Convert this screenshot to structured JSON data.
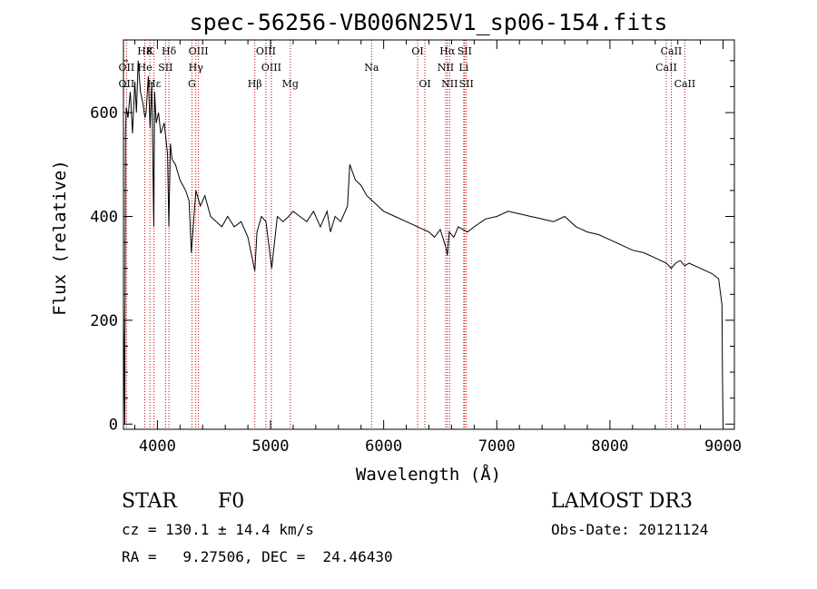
{
  "chart_data": {
    "type": "line",
    "title": "spec-56256-VB006N25V1_sp06-154.fits",
    "xlabel": "Wavelength (Å)",
    "ylabel": "Flux (relative)",
    "xlim": [
      3700,
      9100
    ],
    "ylim": [
      -10,
      740
    ],
    "xticks": [
      4000,
      5000,
      6000,
      7000,
      8000,
      9000
    ],
    "yticks": [
      0,
      200,
      400,
      600
    ],
    "grid": false,
    "series": [
      {
        "name": "flux",
        "x": [
          3700,
          3712,
          3718,
          3725,
          3740,
          3760,
          3780,
          3800,
          3815,
          3830,
          3850,
          3870,
          3890,
          3900,
          3920,
          3935,
          3950,
          3968,
          3975,
          3990,
          4010,
          4030,
          4060,
          4090,
          4101,
          4115,
          4130,
          4160,
          4200,
          4250,
          4280,
          4300,
          4340,
          4380,
          4420,
          4470,
          4520,
          4570,
          4620,
          4680,
          4740,
          4800,
          4861,
          4880,
          4920,
          4960,
          5010,
          5060,
          5110,
          5160,
          5200,
          5260,
          5320,
          5380,
          5440,
          5500,
          5530,
          5570,
          5620,
          5660,
          5680,
          5700,
          5750,
          5800,
          5850,
          5900,
          5950,
          6000,
          6100,
          6200,
          6300,
          6400,
          6450,
          6500,
          6550,
          6563,
          6580,
          6620,
          6660,
          6700,
          6740,
          6800,
          6900,
          7000,
          7100,
          7200,
          7300,
          7400,
          7500,
          7600,
          7700,
          7800,
          7900,
          8000,
          8100,
          8200,
          8300,
          8400,
          8500,
          8542,
          8580,
          8620,
          8662,
          8700,
          8800,
          8900,
          8960,
          8990,
          8995,
          9000
        ],
        "y": [
          230,
          0,
          560,
          610,
          590,
          640,
          560,
          660,
          600,
          700,
          640,
          620,
          590,
          600,
          670,
          570,
          660,
          380,
          640,
          580,
          600,
          560,
          580,
          520,
          380,
          540,
          510,
          500,
          470,
          450,
          430,
          330,
          450,
          420,
          440,
          400,
          390,
          380,
          400,
          380,
          390,
          360,
          295,
          370,
          400,
          390,
          300,
          400,
          390,
          400,
          410,
          400,
          390,
          410,
          380,
          410,
          370,
          400,
          390,
          410,
          420,
          500,
          470,
          460,
          440,
          430,
          420,
          410,
          400,
          390,
          380,
          370,
          360,
          375,
          340,
          325,
          370,
          360,
          380,
          375,
          370,
          380,
          395,
          400,
          410,
          405,
          400,
          395,
          390,
          400,
          380,
          370,
          365,
          355,
          345,
          335,
          330,
          320,
          310,
          300,
          310,
          315,
          305,
          310,
          300,
          290,
          280,
          230,
          90,
          0
        ]
      }
    ],
    "lines": [
      {
        "label": "H8",
        "wl": 3889,
        "row": 1
      },
      {
        "label": "K",
        "wl": 3934,
        "row": 1
      },
      {
        "label": "Hδ",
        "wl": 4102,
        "row": 1
      },
      {
        "label": "OIII",
        "wl": 4363,
        "row": 1
      },
      {
        "label": "OIII",
        "wl": 4959,
        "row": 1
      },
      {
        "label": "OI",
        "wl": 6300,
        "row": 1
      },
      {
        "label": "Hα",
        "wl": 6563,
        "row": 1
      },
      {
        "label": "SII",
        "wl": 6716,
        "row": 1
      },
      {
        "label": "CaII",
        "wl": 8542,
        "row": 1
      },
      {
        "label": "OII",
        "wl": 3727,
        "row": 2
      },
      {
        "label": "He",
        "wl": 3889,
        "row": 2
      },
      {
        "label": "SII",
        "wl": 4072,
        "row": 2
      },
      {
        "label": "Hγ",
        "wl": 4340,
        "row": 2
      },
      {
        "label": "OIII",
        "wl": 5007,
        "row": 2
      },
      {
        "label": "Na",
        "wl": 5893,
        "row": 2
      },
      {
        "label": "NII",
        "wl": 6548,
        "row": 2
      },
      {
        "label": "Li",
        "wl": 6708,
        "row": 2
      },
      {
        "label": "CaII",
        "wl": 8498,
        "row": 2
      },
      {
        "label": "OII",
        "wl": 3727,
        "row": 3
      },
      {
        "label": "Hε",
        "wl": 3970,
        "row": 3
      },
      {
        "label": "G",
        "wl": 4305,
        "row": 3
      },
      {
        "label": "Hβ",
        "wl": 4861,
        "row": 3
      },
      {
        "label": "Mg",
        "wl": 5175,
        "row": 3
      },
      {
        "label": "OI",
        "wl": 6364,
        "row": 3
      },
      {
        "label": "NII",
        "wl": 6583,
        "row": 3
      },
      {
        "label": "SII",
        "wl": 6731,
        "row": 3
      },
      {
        "label": "CaII",
        "wl": 8662,
        "row": 3
      }
    ]
  },
  "info": {
    "class": "STAR",
    "subclass": "F0",
    "cz": "cz = 130.1 ± 14.4 km/s",
    "radec": "RA =   9.27506, DEC =  24.46430",
    "survey": "LAMOST DR3",
    "obsdate": "Obs-Date: 20121124"
  }
}
